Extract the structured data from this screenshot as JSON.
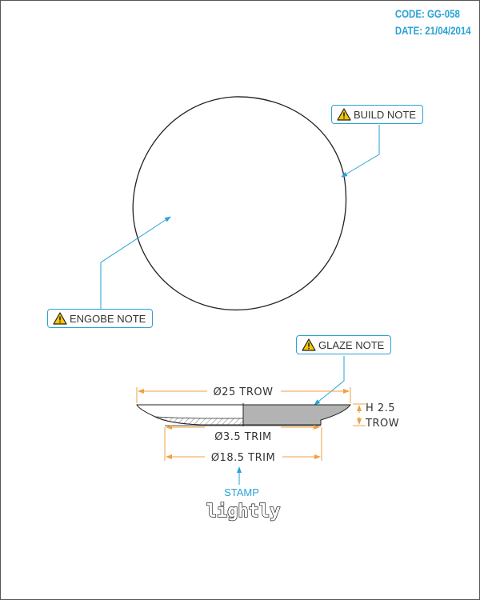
{
  "header": {
    "code": "CODE: GG-058",
    "date": "DATE: 21/04/2014"
  },
  "callouts": {
    "build": "BUILD NOTE",
    "engobe": "ENGOBE NOTE",
    "glaze": "GLAZE NOTE"
  },
  "dimensions": {
    "outer_diameter": "Ø25 TROW",
    "height_line1": "H 2.5",
    "height_line2": "TROW",
    "trim_small": "Ø3.5 TRIM",
    "trim_large": "Ø18.5 TRIM"
  },
  "stamp": {
    "label": "STAMP",
    "word": "lightly"
  },
  "colors": {
    "accent": "#2aa2d6",
    "dimension": "#f0a040",
    "glaze_fill": "#b3b3b3",
    "warning": "#f7c600"
  },
  "icons": [
    "warning-icon"
  ]
}
